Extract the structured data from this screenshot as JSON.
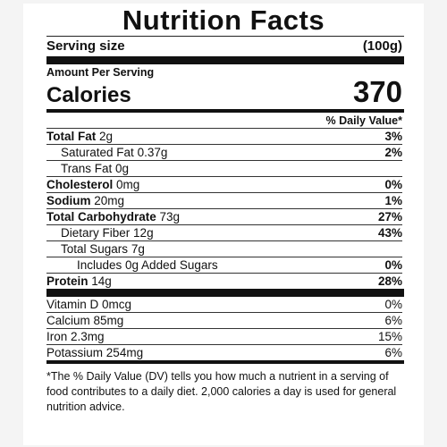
{
  "label": {
    "title": "Nutrition Facts",
    "serving_size_label": "Serving size",
    "serving_size_value": "(100g)",
    "amount_per_serving": "Amount Per Serving",
    "calories_label": "Calories",
    "calories_value": "370",
    "daily_value_header": "% Daily Value*",
    "nutrients": [
      {
        "name": "Total Fat",
        "amount": "2g",
        "dv": "3%"
      },
      {
        "name": "Saturated Fat",
        "amount": "0.37g",
        "dv": "2%"
      },
      {
        "name": "Trans Fat",
        "amount": "0g",
        "dv": ""
      },
      {
        "name": "Cholesterol",
        "amount": "0mg",
        "dv": "0%"
      },
      {
        "name": "Sodium",
        "amount": "20mg",
        "dv": "1%"
      },
      {
        "name": "Total Carbohydrate",
        "amount": "73g",
        "dv": "27%"
      },
      {
        "name": "Dietary Fiber",
        "amount": "12g",
        "dv": "43%"
      },
      {
        "name": "Total Sugars",
        "amount": "7g",
        "dv": ""
      },
      {
        "name": "Includes 0g Added Sugars",
        "amount": "",
        "dv": "0%"
      },
      {
        "name": "Protein",
        "amount": "14g",
        "dv": "28%"
      }
    ],
    "vitamins": [
      {
        "name": "Vitamin D",
        "amount": "0mcg",
        "dv": "0%"
      },
      {
        "name": "Calcium",
        "amount": "85mg",
        "dv": "6%"
      },
      {
        "name": "Iron",
        "amount": "2.3mg",
        "dv": "15%"
      },
      {
        "name": "Potassium",
        "amount": "254mg",
        "dv": "6%"
      }
    ],
    "footnote": "*The % Daily Value (DV) tells you how much a nutrient in a serving of food contributes to a daily diet. 2,000 calories a day is used for general nutrition advice."
  }
}
